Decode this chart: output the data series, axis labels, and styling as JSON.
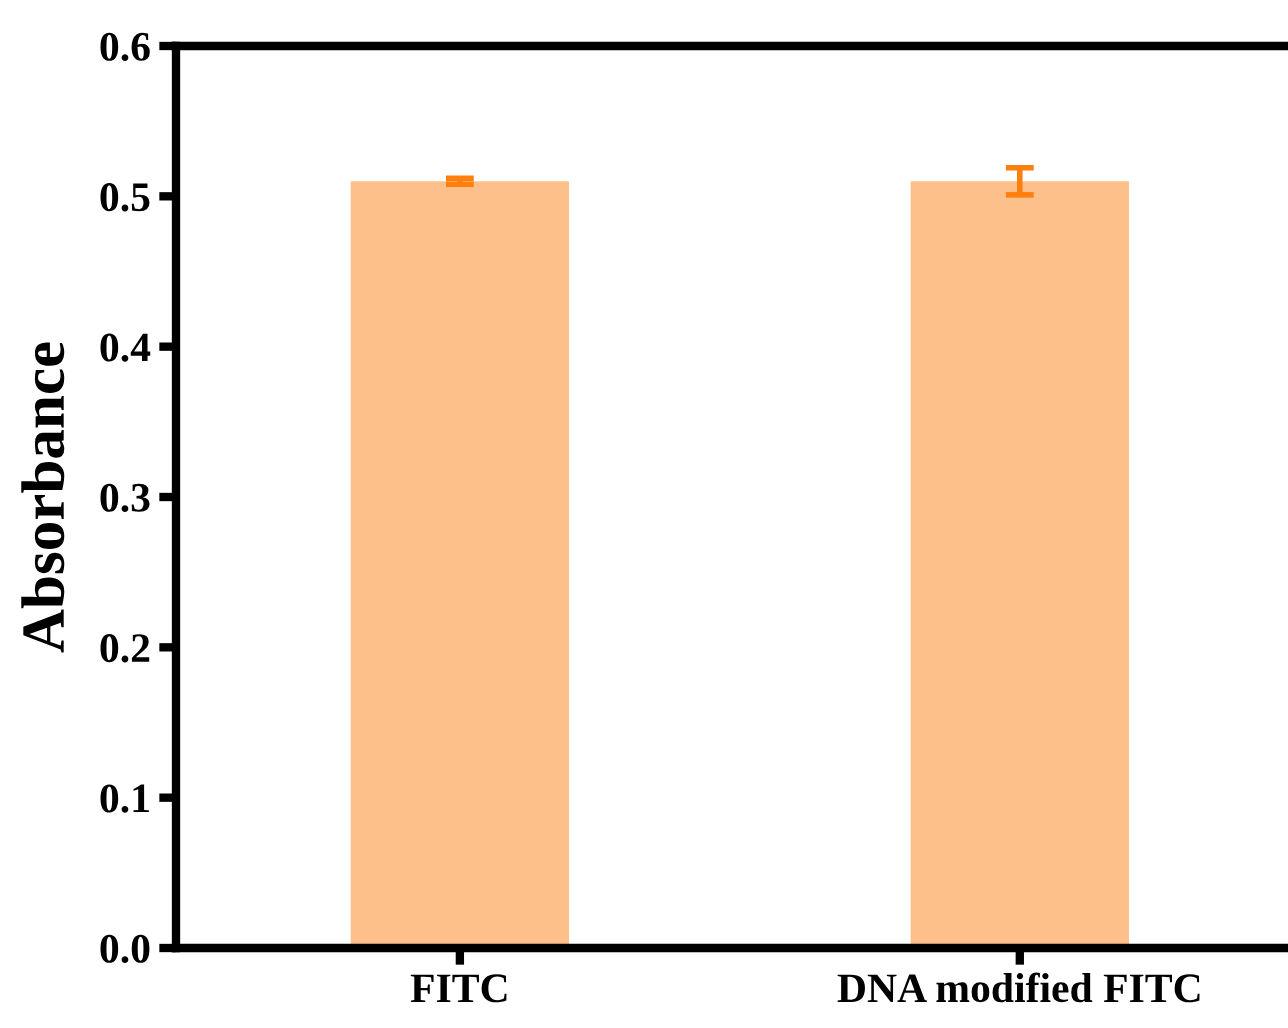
{
  "chart_data": {
    "type": "bar",
    "ylabel": "Absorbance",
    "categories": [
      "FITC",
      "DNA modified FITC"
    ],
    "series": [
      {
        "color": "#fdc08a",
        "values": [
          0.51,
          0.51
        ],
        "errors": [
          0.002,
          0.009
        ]
      }
    ],
    "ylim": [
      0.0,
      0.6
    ],
    "yticks": [
      {
        "value": 0.0,
        "label": "0.0"
      },
      {
        "value": 0.1,
        "label": "0.1"
      },
      {
        "value": 0.2,
        "label": "0.2"
      },
      {
        "value": 0.3,
        "label": "0.3"
      },
      {
        "value": 0.4,
        "label": "0.4"
      },
      {
        "value": 0.5,
        "label": "0.5"
      },
      {
        "value": 0.6,
        "label": "0.6"
      }
    ],
    "grid": false
  }
}
